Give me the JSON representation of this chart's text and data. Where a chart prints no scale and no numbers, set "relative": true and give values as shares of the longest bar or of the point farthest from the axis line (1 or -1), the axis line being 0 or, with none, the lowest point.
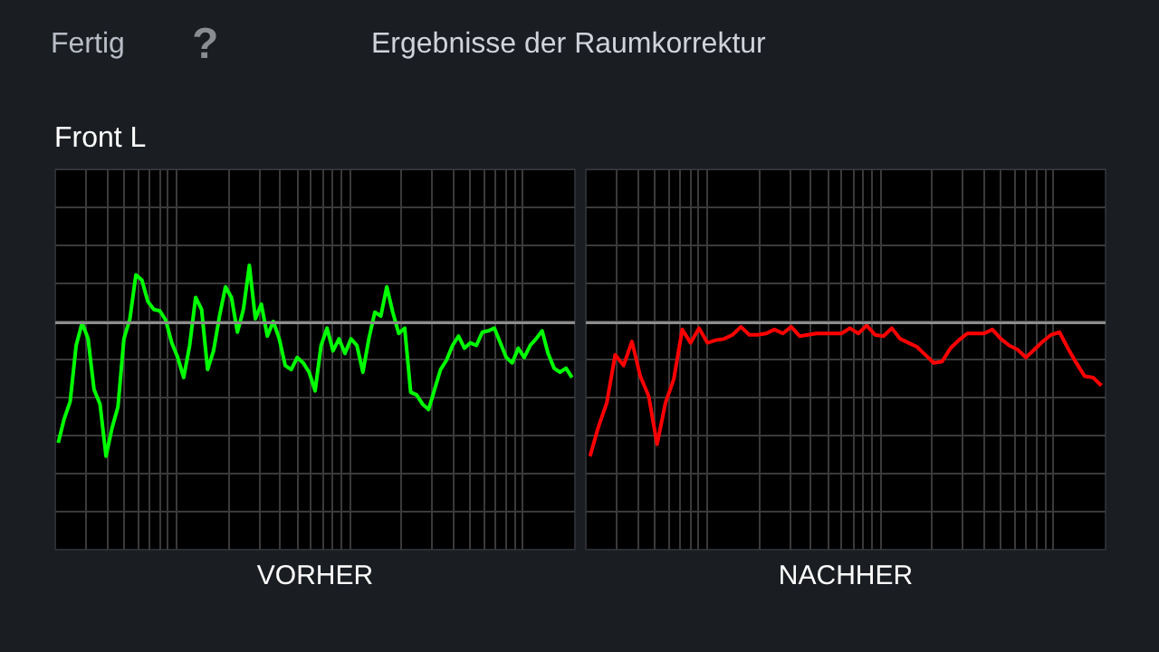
{
  "chart_data": [
    {
      "type": "line",
      "relative": true,
      "title": "Front L",
      "annotations": [
        "Fertig",
        "?",
        "Ergebnisse der Raumkorrektur"
      ],
      "xlabel": "VORHER",
      "grid": true,
      "categories": [
        null,
        null,
        null,
        null,
        null,
        null,
        null,
        null,
        null,
        null,
        null,
        null,
        null,
        null,
        null,
        null,
        null,
        null,
        null,
        null,
        null,
        null,
        null,
        null,
        null,
        null,
        null,
        null,
        null,
        null,
        null,
        null,
        null,
        null,
        null,
        null,
        null,
        null,
        null,
        null,
        null,
        null,
        null,
        null,
        null,
        null,
        null,
        null,
        null,
        null,
        null,
        null,
        null,
        null,
        null,
        null,
        null,
        null,
        null,
        null,
        null,
        null,
        null,
        null,
        null,
        null,
        null,
        null,
        null,
        null,
        null,
        null,
        null,
        null,
        null,
        null,
        null,
        null,
        null,
        null,
        null,
        null,
        null,
        null,
        null,
        null,
        null
      ],
      "series": [
        {
          "color": "#00ff00",
          "values": [
            -0.9,
            -0.72,
            -0.59,
            -0.17,
            0,
            -0.12,
            -0.5,
            -0.61,
            -1,
            -0.79,
            -0.63,
            -0.12,
            0.03,
            0.36,
            0.32,
            0.16,
            0.1,
            0.09,
            0.02,
            -0.15,
            -0.26,
            -0.41,
            -0.17,
            0.19,
            0.1,
            -0.35,
            -0.21,
            0.05,
            0.27,
            0.19,
            -0.07,
            0.1,
            0.43,
            0.03,
            0.14,
            -0.1,
            0.01,
            -0.12,
            -0.32,
            -0.35,
            -0.26,
            -0.3,
            -0.37,
            -0.51,
            -0.17,
            -0.04,
            -0.21,
            -0.12,
            -0.23,
            -0.12,
            -0.17,
            -0.37,
            -0.12,
            0.08,
            0.05,
            0.27,
            0.08,
            -0.08,
            -0.04,
            -0.52,
            -0.54,
            -0.61,
            -0.65,
            -0.5,
            -0.35,
            -0.28,
            -0.17,
            -0.1,
            -0.19,
            -0.15,
            -0.17,
            -0.07,
            -0.06,
            -0.04,
            -0.15,
            -0.26,
            -0.3,
            -0.19,
            -0.26,
            -0.17,
            -0.12,
            -0.06,
            -0.23,
            -0.34,
            -0.37,
            -0.34,
            -0.41
          ]
        }
      ]
    },
    {
      "type": "line",
      "relative": true,
      "xlabel": "NACHHER",
      "grid": true,
      "categories": [
        null,
        null,
        null,
        null,
        null,
        null,
        null,
        null,
        null,
        null,
        null,
        null,
        null,
        null,
        null,
        null,
        null,
        null,
        null,
        null,
        null,
        null,
        null,
        null,
        null,
        null,
        null,
        null,
        null,
        null,
        null,
        null,
        null,
        null,
        null,
        null,
        null,
        null,
        null,
        null,
        null,
        null,
        null,
        null,
        null,
        null,
        null,
        null,
        null,
        null,
        null,
        null,
        null,
        null,
        null,
        null,
        null,
        null,
        null,
        null,
        null,
        null
      ],
      "series": [
        {
          "color": "#ff0000",
          "values": [
            -1,
            -0.78,
            -0.6,
            -0.24,
            -0.32,
            -0.14,
            -0.4,
            -0.55,
            -0.91,
            -0.6,
            -0.42,
            -0.05,
            -0.15,
            -0.04,
            -0.15,
            -0.13,
            -0.12,
            -0.09,
            -0.03,
            -0.09,
            -0.09,
            -0.08,
            -0.05,
            -0.08,
            -0.03,
            -0.1,
            -0.09,
            -0.08,
            -0.08,
            -0.08,
            -0.08,
            -0.04,
            -0.08,
            -0.02,
            -0.09,
            -0.1,
            -0.04,
            -0.12,
            -0.15,
            -0.18,
            -0.24,
            -0.3,
            -0.29,
            -0.19,
            -0.13,
            -0.08,
            -0.08,
            -0.08,
            -0.05,
            -0.12,
            -0.17,
            -0.2,
            -0.26,
            -0.2,
            -0.14,
            -0.09,
            -0.07,
            -0.19,
            -0.3,
            -0.4,
            -0.41,
            -0.47
          ]
        }
      ]
    }
  ]
}
